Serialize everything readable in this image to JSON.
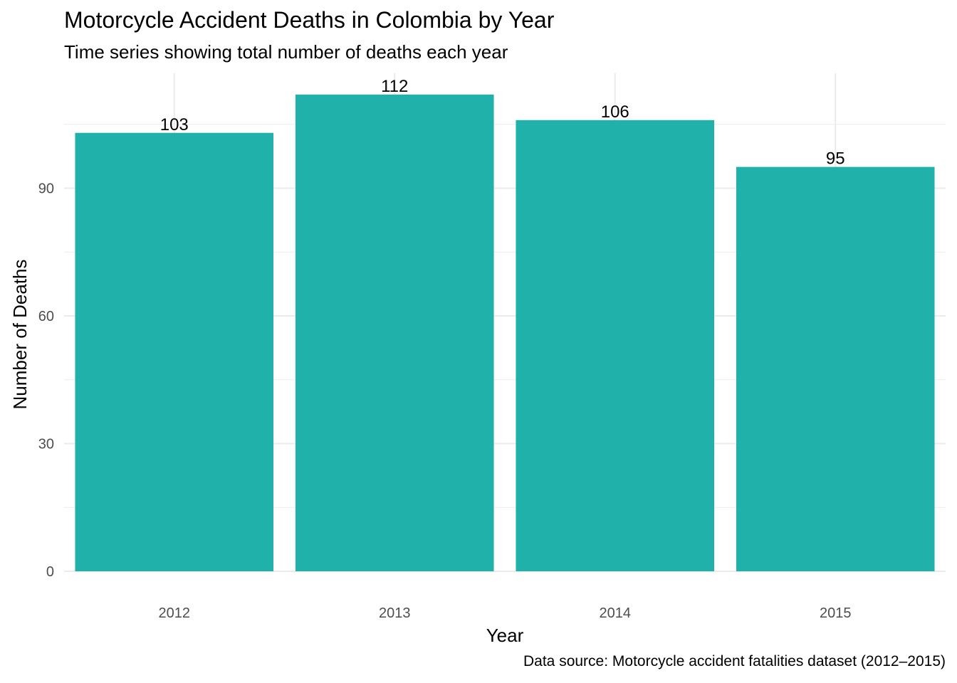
{
  "chart_data": {
    "type": "bar",
    "title": "Motorcycle Accident Deaths in Colombia by Year",
    "subtitle": "Time series showing total number of deaths each year",
    "caption": "Data source: Motorcycle accident fatalities dataset (2012–2015)",
    "xlabel": "Year",
    "ylabel": "Number of Deaths",
    "categories": [
      "2012",
      "2013",
      "2014",
      "2015"
    ],
    "values": [
      103,
      112,
      106,
      95
    ],
    "data_labels": [
      "103",
      "112",
      "106",
      "95"
    ],
    "y_ticks": [
      0,
      30,
      60,
      90
    ],
    "ylim": [
      0,
      117
    ],
    "grid": true,
    "legend": "none",
    "bar_color": "#20B2AA",
    "grid_color": "#ebebeb"
  }
}
